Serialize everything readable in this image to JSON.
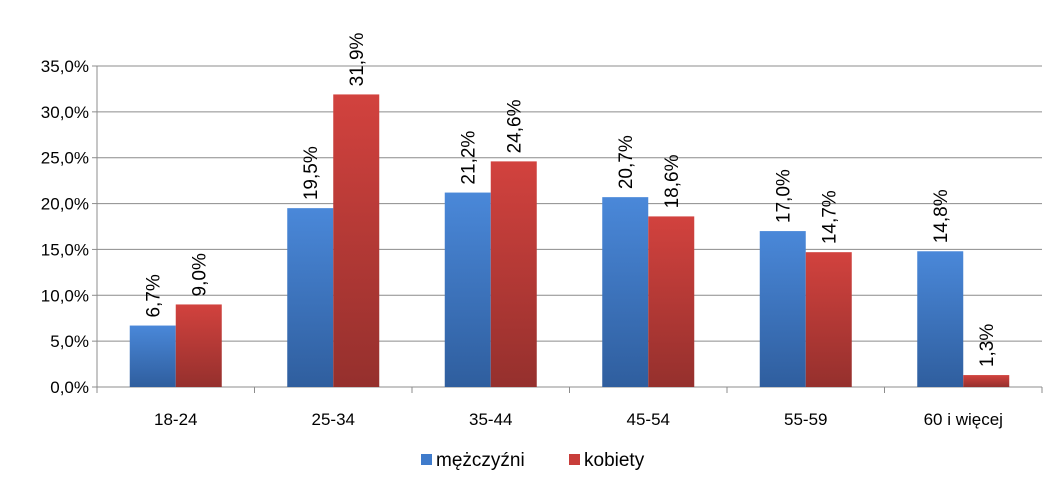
{
  "chart_data": {
    "type": "bar",
    "categories": [
      "18-24",
      "25-34",
      "35-44",
      "45-54",
      "55-59",
      "60 i więcej"
    ],
    "series": [
      {
        "name": "mężczyźni",
        "values": [
          6.7,
          19.5,
          21.2,
          20.7,
          17.0,
          14.8
        ],
        "labels": [
          "6,7%",
          "19,5%",
          "21,2%",
          "20,7%",
          "17,0%",
          "14,8%"
        ],
        "color": "#3F7BCB"
      },
      {
        "name": "kobiety",
        "values": [
          9.0,
          31.9,
          24.6,
          18.6,
          14.7,
          1.3
        ],
        "labels": [
          "9,0%",
          "31,9%",
          "24,6%",
          "18,6%",
          "14,7%",
          "1,3%"
        ],
        "color": "#C83D3A"
      }
    ],
    "yticks": [
      {
        "value": 0,
        "label": "0,0%"
      },
      {
        "value": 5,
        "label": "5,0%"
      },
      {
        "value": 10,
        "label": "10,0%"
      },
      {
        "value": 15,
        "label": "15,0%"
      },
      {
        "value": 20,
        "label": "20,0%"
      },
      {
        "value": 25,
        "label": "25,0%"
      },
      {
        "value": 30,
        "label": "30,0%"
      },
      {
        "value": 35,
        "label": "35,0%"
      }
    ],
    "ylim": [
      0,
      35
    ],
    "title": "",
    "xlabel": "",
    "ylabel": "",
    "grid": true,
    "legend_position": "bottom"
  }
}
